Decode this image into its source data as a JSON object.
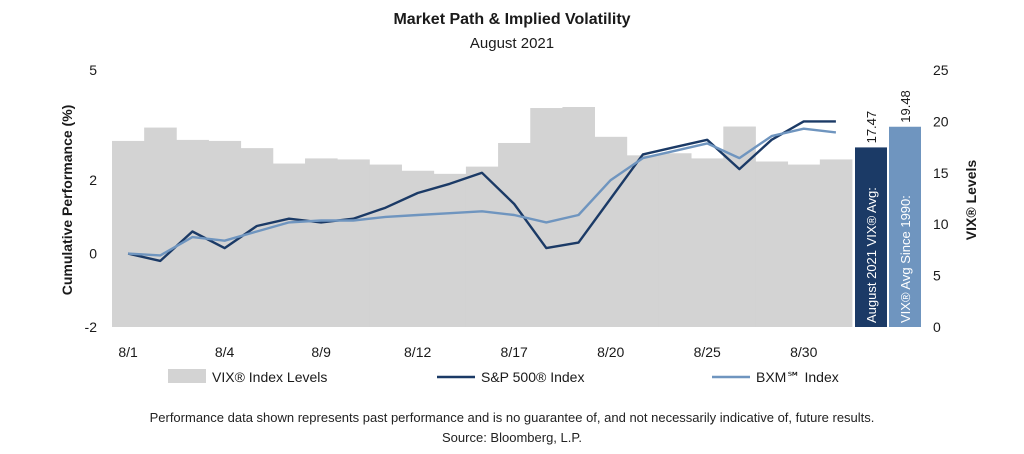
{
  "chart_data": {
    "type": "bar-line-combo",
    "title": "Market Path & Implied Volatility",
    "subtitle": "August 2021",
    "ylabel_left": "Cumulative Performance (%)",
    "ylabel_right": "VIX® Levels",
    "ylim_left": [
      -2,
      5
    ],
    "ylim_right": [
      0,
      25
    ],
    "yticks_left": [
      5,
      2,
      0,
      -2
    ],
    "yticks_right": [
      25,
      20,
      15,
      10,
      5,
      0
    ],
    "x_tick_labels": [
      {
        "index": 0,
        "label": "8/1"
      },
      {
        "index": 3,
        "label": "8/4"
      },
      {
        "index": 6,
        "label": "8/9"
      },
      {
        "index": 9,
        "label": "8/12"
      },
      {
        "index": 12,
        "label": "8/17"
      },
      {
        "index": 15,
        "label": "8/20"
      },
      {
        "index": 18,
        "label": "8/25"
      },
      {
        "index": 21,
        "label": "8/30"
      }
    ],
    "vix_bars": [
      18.1,
      19.4,
      18.2,
      18.1,
      17.4,
      15.9,
      16.4,
      16.3,
      15.8,
      15.2,
      14.9,
      15.6,
      17.9,
      21.3,
      21.4,
      18.5,
      16.7,
      16.9,
      16.4,
      19.5,
      16.1,
      15.8,
      16.3
    ],
    "series": [
      {
        "name": "S&P 500® Index",
        "color": "#1b3a66",
        "values": [
          0.0,
          -0.2,
          0.6,
          0.15,
          0.75,
          0.95,
          0.85,
          0.95,
          1.25,
          1.65,
          1.9,
          2.2,
          1.35,
          0.15,
          0.3,
          1.5,
          2.7,
          2.9,
          3.1,
          2.3,
          3.1,
          3.6,
          3.6
        ]
      },
      {
        "name": "BXM℠ Index",
        "color": "#6f95bf",
        "values": [
          0.0,
          -0.05,
          0.45,
          0.35,
          0.6,
          0.85,
          0.9,
          0.9,
          1.0,
          1.05,
          1.1,
          1.15,
          1.05,
          0.85,
          1.05,
          2.0,
          2.6,
          2.8,
          3.0,
          2.6,
          3.2,
          3.4,
          3.3
        ]
      }
    ],
    "summary_bars": [
      {
        "label": "August 2021 VIX® Avg:",
        "value": 17.47,
        "value_text": "17.47",
        "color": "#1b3a66"
      },
      {
        "label": "VIX® Avg Since 1990:",
        "value": 19.48,
        "value_text": "19.48",
        "color": "#6f95bf"
      }
    ],
    "legend": [
      {
        "name": "VIX® Index Levels",
        "kind": "box",
        "color": "#d3d3d3"
      },
      {
        "name": "S&P 500® Index",
        "kind": "line",
        "color": "#1b3a66"
      },
      {
        "name": "BXM℠ Index",
        "kind": "line",
        "color": "#6f95bf"
      }
    ],
    "legend_position": "bottom",
    "grid": false
  },
  "footnote": {
    "line1": "Performance data shown represents past performance and is no guarantee of, and not necessarily indicative of, future results.",
    "line2": "Source: Bloomberg, L.P."
  }
}
